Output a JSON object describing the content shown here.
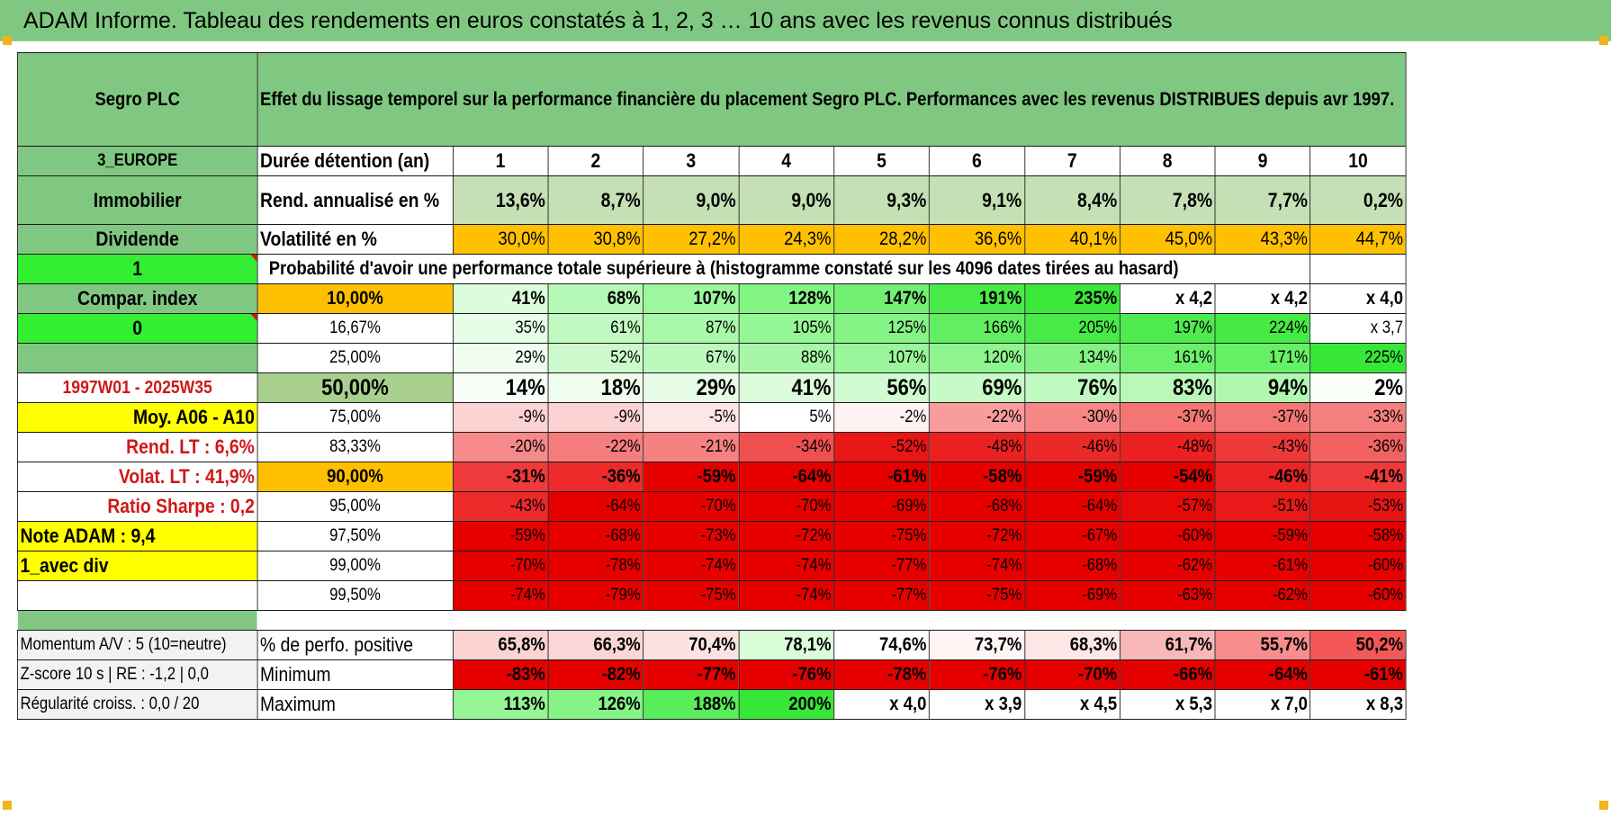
{
  "title": "ADAM Informe. Tableau des rendements en euros constatés à 1, 2, 3 … 10 ans avec les revenus connus distribués",
  "left": {
    "name": "Segro PLC",
    "region": "3_EUROPE",
    "sector": "Immobilier",
    "type": "Dividende",
    "flag1": "1",
    "compar_label": "Compar. index",
    "flag2": "0",
    "period": "1997W01 - 2025W35",
    "moy": "Moy. A06 - A10",
    "rend_lt": "Rend. LT :    6,6%",
    "volat_lt": "Volat. LT :    41,9%",
    "sharpe": "Ratio Sharpe :    0,2",
    "note": "Note ADAM : 9,4",
    "avec_div": "1_avec div"
  },
  "description": "Effet du lissage temporel sur la performance financière du placement Segro PLC. Performances avec les revenus DISTRIBUES depuis avr 1997.",
  "duration_label": "Durée détention (an)",
  "years": [
    "1",
    "2",
    "3",
    "4",
    "5",
    "6",
    "7",
    "8",
    "9",
    "10"
  ],
  "rend_label": "Rend. annualisé en %",
  "rend": [
    "13,6%",
    "8,7%",
    "9,0%",
    "9,0%",
    "9,3%",
    "9,1%",
    "8,4%",
    "7,8%",
    "7,7%",
    "0,2%"
  ],
  "vol_label": "Volatilité en %",
  "vol": [
    "30,0%",
    "30,8%",
    "27,2%",
    "24,3%",
    "28,2%",
    "36,6%",
    "40,1%",
    "45,0%",
    "43,3%",
    "44,7%"
  ],
  "prob_label": "Probabilité d'avoir une performance totale supérieure à (histogramme constaté sur les 4096 dates tirées au hasard)",
  "prob_rows": [
    {
      "p": "10,00%",
      "v": [
        "41%",
        "68%",
        "107%",
        "128%",
        "147%",
        "191%",
        "235%",
        "x 4,2",
        "x 4,2",
        "x 4,0"
      ]
    },
    {
      "p": "16,67%",
      "v": [
        "35%",
        "61%",
        "87%",
        "105%",
        "125%",
        "166%",
        "205%",
        "197%",
        "224%",
        "x 3,7"
      ]
    },
    {
      "p": "25,00%",
      "v": [
        "29%",
        "52%",
        "67%",
        "88%",
        "107%",
        "120%",
        "134%",
        "161%",
        "171%",
        "225%"
      ]
    },
    {
      "p": "50,00%",
      "v": [
        "14%",
        "18%",
        "29%",
        "41%",
        "56%",
        "69%",
        "76%",
        "83%",
        "94%",
        "2%"
      ]
    },
    {
      "p": "75,00%",
      "v": [
        "-9%",
        "-9%",
        "-5%",
        "5%",
        "-2%",
        "-22%",
        "-30%",
        "-37%",
        "-37%",
        "-33%"
      ]
    },
    {
      "p": "83,33%",
      "v": [
        "-20%",
        "-22%",
        "-21%",
        "-34%",
        "-52%",
        "-48%",
        "-46%",
        "-48%",
        "-43%",
        "-36%"
      ]
    },
    {
      "p": "90,00%",
      "v": [
        "-31%",
        "-36%",
        "-59%",
        "-64%",
        "-61%",
        "-58%",
        "-59%",
        "-54%",
        "-46%",
        "-41%"
      ]
    },
    {
      "p": "95,00%",
      "v": [
        "-43%",
        "-64%",
        "-70%",
        "-70%",
        "-69%",
        "-68%",
        "-64%",
        "-57%",
        "-51%",
        "-53%"
      ]
    },
    {
      "p": "97,50%",
      "v": [
        "-59%",
        "-68%",
        "-73%",
        "-72%",
        "-75%",
        "-72%",
        "-67%",
        "-60%",
        "-59%",
        "-58%"
      ]
    },
    {
      "p": "99,00%",
      "v": [
        "-70%",
        "-78%",
        "-74%",
        "-74%",
        "-77%",
        "-74%",
        "-68%",
        "-62%",
        "-61%",
        "-60%"
      ]
    },
    {
      "p": "99,50%",
      "v": [
        "-74%",
        "-79%",
        "-75%",
        "-74%",
        "-77%",
        "-75%",
        "-69%",
        "-63%",
        "-62%",
        "-60%"
      ]
    }
  ],
  "bottom": [
    {
      "left": "Momentum A/V : 5 (10=neutre)",
      "label": "% de perfo. positive",
      "v": [
        "65,8%",
        "66,3%",
        "70,4%",
        "78,1%",
        "74,6%",
        "73,7%",
        "68,3%",
        "61,7%",
        "55,7%",
        "50,2%"
      ]
    },
    {
      "left": "Z-score 10 s | RE : -1,2 | 0,0",
      "label": "Minimum",
      "v": [
        "-83%",
        "-82%",
        "-77%",
        "-76%",
        "-78%",
        "-76%",
        "-70%",
        "-66%",
        "-64%",
        "-61%"
      ]
    },
    {
      "left": "Régularité croiss. : 0,0 / 20",
      "label": "Maximum",
      "v": [
        "113%",
        "126%",
        "188%",
        "200%",
        "x 4,0",
        "x 3,9",
        "x 4,5",
        "x 5,3",
        "x 7,0",
        "x 8,3"
      ]
    }
  ],
  "colors": {
    "header_green": "#80c882",
    "bright_green": "#33ee33",
    "yellow": "#ffff00",
    "orange": "#ffbd00",
    "label_red": "#d01818"
  },
  "cell_colors": {
    "rend": [
      "#c5e0b4",
      "#c5e0b4",
      "#c5e0b4",
      "#c5e0b4",
      "#c5e0b4",
      "#c5e0b4",
      "#c5e0b4",
      "#c5e0b4",
      "#c5e0b4",
      "#c5e0b4"
    ],
    "vol": [
      "#ffc000",
      "#ffc000",
      "#ffc000",
      "#ffc000",
      "#ffc000",
      "#ffc000",
      "#ffc000",
      "#ffc000",
      "#ffc000",
      "#ffc000"
    ],
    "prob": [
      [
        "#dbfddb",
        "#b6f9b6",
        "#9df79d",
        "#82f582",
        "#73f073",
        "#48ea48",
        "#3ae83a",
        "#ffffff",
        "#ffffff",
        "#ffffff"
      ],
      [
        "#e6fde6",
        "#c1f9c1",
        "#aaf8aa",
        "#95f695",
        "#86f386",
        "#62ee62",
        "#48ea48",
        "#4eeb4e",
        "#45ea45",
        "#ffffff"
      ],
      [
        "#f0fef0",
        "#ccfacc",
        "#bdf9bd",
        "#a8f7a8",
        "#9af69a",
        "#8ff58f",
        "#82f382",
        "#6cf06c",
        "#66f066",
        "#37e737"
      ],
      [
        "#f7fef7",
        "#effdef",
        "#e7fde7",
        "#dcfcdc",
        "#d1fbd1",
        "#c6fac6",
        "#c0f9c0",
        "#b9f8b9",
        "#b1f7b1",
        "#fafffa"
      ],
      [
        "#fcd3d3",
        "#fcd3d3",
        "#fde6e6",
        "#ffffff",
        "#fef2f2",
        "#f99c9c",
        "#f78787",
        "#f57575",
        "#f57575",
        "#f68080"
      ],
      [
        "#f68989",
        "#f57d7d",
        "#f58181",
        "#f04f4f",
        "#ea1515",
        "#eb2121",
        "#ec2929",
        "#eb2121",
        "#ee3939",
        "#f26262"
      ],
      [
        "#ee3a3a",
        "#ec2a2a",
        "#e60000",
        "#e60000",
        "#e60000",
        "#e60000",
        "#e60000",
        "#e60000",
        "#eb2323",
        "#ee3a3a"
      ],
      [
        "#ec2a2a",
        "#e60000",
        "#e60000",
        "#e60000",
        "#e60000",
        "#e60000",
        "#e60000",
        "#e70808",
        "#ea1818",
        "#e91414"
      ],
      [
        "#e60000",
        "#e60000",
        "#e60000",
        "#e60000",
        "#e60000",
        "#e60000",
        "#e60000",
        "#e60000",
        "#e60000",
        "#e60000"
      ],
      [
        "#e60000",
        "#e60000",
        "#e60000",
        "#e60000",
        "#e60000",
        "#e60000",
        "#e60000",
        "#e60000",
        "#e60000",
        "#e60000"
      ],
      [
        "#e60000",
        "#e60000",
        "#e60000",
        "#e60000",
        "#e60000",
        "#e60000",
        "#e60000",
        "#e60000",
        "#e60000",
        "#e60000"
      ]
    ],
    "pct_pos": [
      "#fbd3d3",
      "#fbd6d6",
      "#fde2e2",
      "#d9fcd9",
      "#ffffff",
      "#fff5f5",
      "#fde7e7",
      "#f9b8b8",
      "#f78d8d",
      "#f35757"
    ],
    "minimum": [
      "#e60000",
      "#e60000",
      "#e60000",
      "#e60000",
      "#e60000",
      "#e60000",
      "#e60000",
      "#e60000",
      "#e60000",
      "#e60000"
    ],
    "maximum": [
      "#94f594",
      "#86f386",
      "#5aed5a",
      "#37e737",
      "#ffffff",
      "#ffffff",
      "#ffffff",
      "#ffffff",
      "#ffffff",
      "#ffffff"
    ]
  },
  "row_bold": [
    true,
    false,
    false,
    true,
    false,
    false,
    true,
    false,
    false,
    false,
    false
  ],
  "row_big": [
    false,
    false,
    false,
    true,
    false,
    false,
    false,
    false,
    false,
    false,
    false
  ]
}
